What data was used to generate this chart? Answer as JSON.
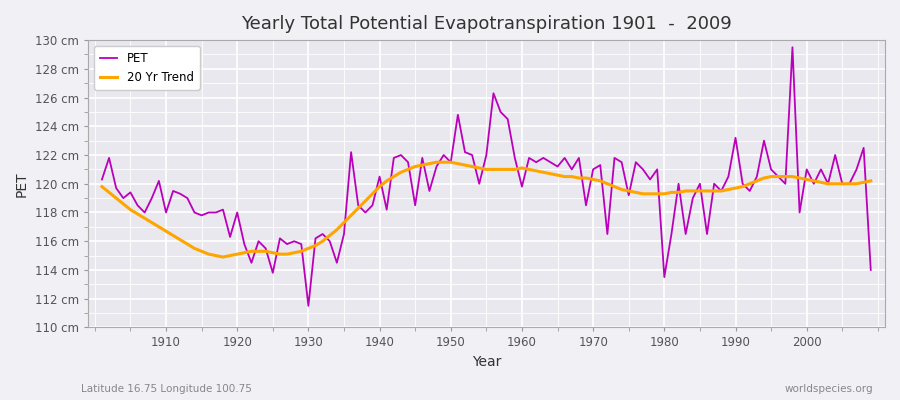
{
  "title": "Yearly Total Potential Evapotranspiration 1901  -  2009",
  "xlabel": "Year",
  "ylabel": "PET",
  "subtitle": "Latitude 16.75 Longitude 100.75",
  "watermark": "worldspecies.org",
  "pet_color": "#bb00bb",
  "trend_color": "#ffa500",
  "background_color": "#f0f0f5",
  "plot_bg_color": "#e8e8ee",
  "grid_color": "#ffffff",
  "ylim": [
    110,
    130
  ],
  "ytick_labels": [
    "110 cm",
    "112 cm",
    "114 cm",
    "116 cm",
    "118 cm",
    "120 cm",
    "122 cm",
    "124 cm",
    "126 cm",
    "128 cm",
    "130 cm"
  ],
  "ytick_values": [
    110,
    112,
    114,
    116,
    118,
    120,
    122,
    124,
    126,
    128,
    130
  ],
  "years": [
    1901,
    1902,
    1903,
    1904,
    1905,
    1906,
    1907,
    1908,
    1909,
    1910,
    1911,
    1912,
    1913,
    1914,
    1915,
    1916,
    1917,
    1918,
    1919,
    1920,
    1921,
    1922,
    1923,
    1924,
    1925,
    1926,
    1927,
    1928,
    1929,
    1930,
    1931,
    1932,
    1933,
    1934,
    1935,
    1936,
    1937,
    1938,
    1939,
    1940,
    1941,
    1942,
    1943,
    1944,
    1945,
    1946,
    1947,
    1948,
    1949,
    1950,
    1951,
    1952,
    1953,
    1954,
    1955,
    1956,
    1957,
    1958,
    1959,
    1960,
    1961,
    1962,
    1963,
    1964,
    1965,
    1966,
    1967,
    1968,
    1969,
    1970,
    1971,
    1972,
    1973,
    1974,
    1975,
    1976,
    1977,
    1978,
    1979,
    1980,
    1981,
    1982,
    1983,
    1984,
    1985,
    1986,
    1987,
    1988,
    1989,
    1990,
    1991,
    1992,
    1993,
    1994,
    1995,
    1996,
    1997,
    1998,
    1999,
    2000,
    2001,
    2002,
    2003,
    2004,
    2005,
    2006,
    2007,
    2008,
    2009
  ],
  "pet_values": [
    120.3,
    121.8,
    119.7,
    119.0,
    119.4,
    118.5,
    118.0,
    119.0,
    120.2,
    118.0,
    119.5,
    119.3,
    119.0,
    118.0,
    117.8,
    118.0,
    118.0,
    118.2,
    116.3,
    118.0,
    115.8,
    114.5,
    116.0,
    115.5,
    113.8,
    116.2,
    115.8,
    116.0,
    115.8,
    111.5,
    116.2,
    116.5,
    116.0,
    114.5,
    116.5,
    122.2,
    118.5,
    118.0,
    118.5,
    120.5,
    118.2,
    121.8,
    122.0,
    121.5,
    118.5,
    121.8,
    119.5,
    121.2,
    122.0,
    121.5,
    124.8,
    122.2,
    122.0,
    120.0,
    122.0,
    126.3,
    125.0,
    124.5,
    121.8,
    119.8,
    121.8,
    121.5,
    121.8,
    121.5,
    121.2,
    121.8,
    121.0,
    121.8,
    118.5,
    121.0,
    121.3,
    116.5,
    121.8,
    121.5,
    119.2,
    121.5,
    121.0,
    120.3,
    121.0,
    113.5,
    116.5,
    120.0,
    116.5,
    119.0,
    120.0,
    116.5,
    120.0,
    119.5,
    120.5,
    123.2,
    120.0,
    119.5,
    120.5,
    123.0,
    121.0,
    120.5,
    120.0,
    129.5,
    118.0,
    121.0,
    120.0,
    121.0,
    120.0,
    122.0,
    120.0,
    120.0,
    121.0,
    122.5,
    114.0
  ],
  "trend_values": [
    119.8,
    119.4,
    119.0,
    118.6,
    118.2,
    117.9,
    117.6,
    117.3,
    117.0,
    116.7,
    116.4,
    116.1,
    115.8,
    115.5,
    115.3,
    115.1,
    115.0,
    114.9,
    115.0,
    115.1,
    115.2,
    115.3,
    115.3,
    115.3,
    115.2,
    115.1,
    115.1,
    115.2,
    115.3,
    115.5,
    115.7,
    116.0,
    116.4,
    116.8,
    117.3,
    117.8,
    118.3,
    118.8,
    119.3,
    119.8,
    120.2,
    120.5,
    120.8,
    121.0,
    121.2,
    121.3,
    121.4,
    121.5,
    121.5,
    121.5,
    121.4,
    121.3,
    121.2,
    121.1,
    121.0,
    121.0,
    121.0,
    121.0,
    121.0,
    121.1,
    121.0,
    120.9,
    120.8,
    120.7,
    120.6,
    120.5,
    120.5,
    120.4,
    120.4,
    120.3,
    120.2,
    120.0,
    119.8,
    119.6,
    119.5,
    119.4,
    119.3,
    119.3,
    119.3,
    119.3,
    119.4,
    119.4,
    119.5,
    119.5,
    119.5,
    119.5,
    119.5,
    119.5,
    119.6,
    119.7,
    119.8,
    120.0,
    120.2,
    120.4,
    120.5,
    120.5,
    120.5,
    120.5,
    120.4,
    120.3,
    120.2,
    120.1,
    120.0,
    120.0,
    120.0,
    120.0,
    120.0,
    120.1,
    120.2
  ]
}
